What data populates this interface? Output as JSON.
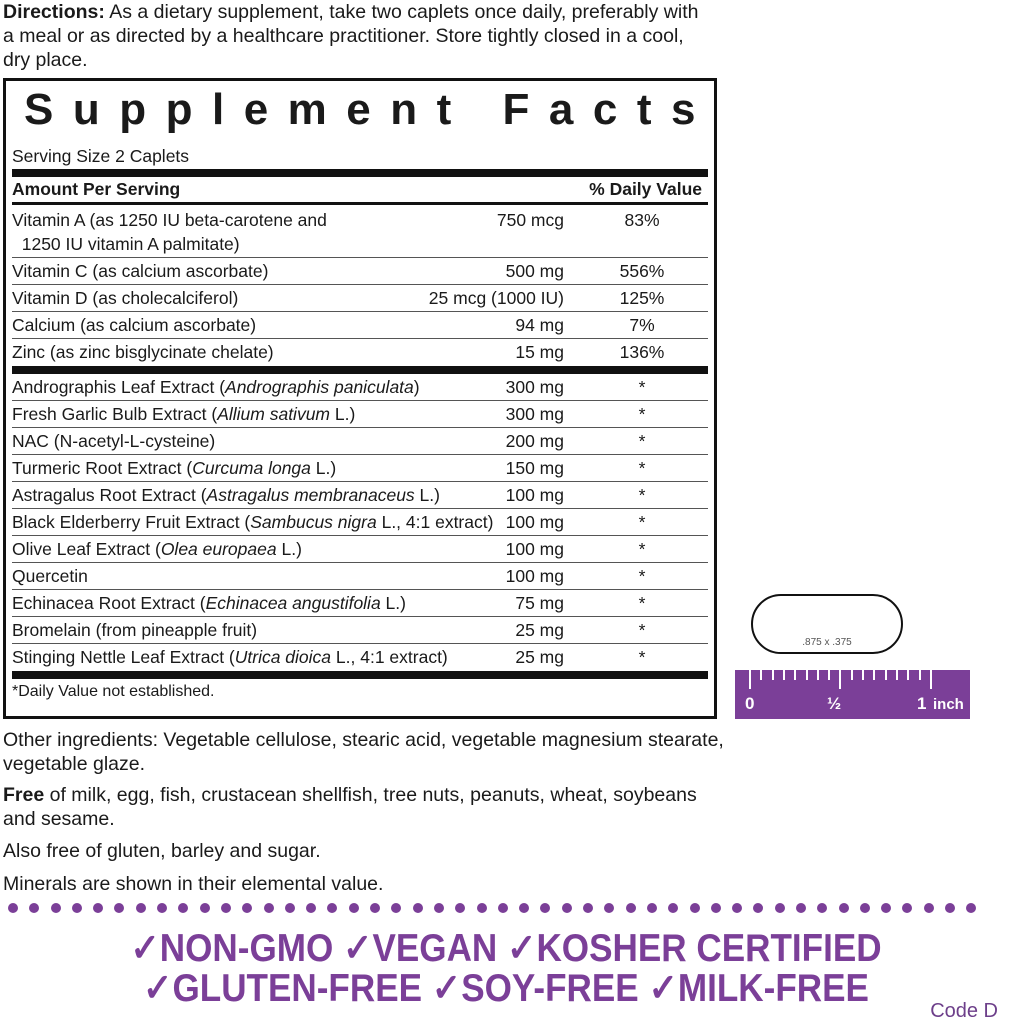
{
  "directions": {
    "label": "Directions:",
    "text": " As a dietary supplement, take two caplets once daily, preferably with a meal or as directed by a healthcare practitioner. Store tightly closed in a cool, dry place."
  },
  "facts": {
    "title": "Supplement Facts",
    "serving_size": "Serving Size 2 Caplets",
    "header_amount": "Amount Per Serving",
    "header_dv": "% Daily Value",
    "vitamins": [
      {
        "name": "Vitamin A (as 1250 IU beta-carotene and",
        "name2": "1250 IU vitamin A palmitate)",
        "amount": "750 mcg",
        "dv": "83%"
      },
      {
        "name": "Vitamin C (as calcium ascorbate)",
        "amount": "500 mg",
        "dv": "556%"
      },
      {
        "name": "Vitamin D (as cholecalciferol)",
        "amount": "25 mcg (1000 IU)",
        "dv": "125%"
      },
      {
        "name": "Calcium (as calcium ascorbate)",
        "amount": "94 mg",
        "dv": "7%"
      },
      {
        "name": "Zinc (as zinc bisglycinate chelate)",
        "amount": "15 mg",
        "dv": "136%"
      }
    ],
    "botanicals": [
      {
        "pre": "Andrographis Leaf Extract (",
        "it": "Andrographis paniculata",
        "post": ")",
        "amount": "300 mg",
        "dv": "*"
      },
      {
        "pre": "Fresh Garlic Bulb Extract (",
        "it": "Allium sativum",
        "post": " L.)",
        "amount": "300 mg",
        "dv": "*"
      },
      {
        "pre": "NAC (N-acetyl-L-cysteine)",
        "it": "",
        "post": "",
        "amount": "200 mg",
        "dv": "*"
      },
      {
        "pre": "Turmeric Root Extract (",
        "it": "Curcuma longa",
        "post": " L.)",
        "amount": "150 mg",
        "dv": "*"
      },
      {
        "pre": "Astragalus Root Extract (",
        "it": "Astragalus membranaceus",
        "post": " L.)",
        "amount": "100 mg",
        "dv": "*"
      },
      {
        "pre": "Black Elderberry Fruit Extract (",
        "it": "Sambucus nigra",
        "post": " L., 4:1 extract)",
        "amount": "100 mg",
        "dv": "*"
      },
      {
        "pre": "Olive Leaf Extract (",
        "it": "Olea europaea",
        "post": " L.)",
        "amount": "100 mg",
        "dv": "*"
      },
      {
        "pre": "Quercetin",
        "it": "",
        "post": "",
        "amount": "100 mg",
        "dv": "*"
      },
      {
        "pre": "Echinacea Root Extract (",
        "it": "Echinacea angustifolia",
        "post": " L.)",
        "amount": "75 mg",
        "dv": "*"
      },
      {
        "pre": "Bromelain (from pineapple fruit)",
        "it": "",
        "post": "",
        "amount": "25 mg",
        "dv": "*"
      },
      {
        "pre": "Stinging Nettle Leaf Extract (",
        "it": "Utrica dioica",
        "post": " L., 4:1 extract)",
        "amount": "25 mg",
        "dv": "*"
      }
    ],
    "footnote": "*Daily Value not established."
  },
  "other_ingredients": "Other ingredients: Vegetable cellulose, stearic acid, vegetable magnesium stearate, vegetable glaze.",
  "free_of": {
    "label": "Free",
    "text": " of milk, egg, fish, crustacean shellfish, tree nuts,  peanuts, wheat, soybeans and sesame."
  },
  "also_free": "Also free of gluten, barley and sugar.",
  "minerals_note": "Minerals are shown in their elemental value.",
  "caplet_size": ".875 x .375",
  "ruler": {
    "zero": "0",
    "half": "½",
    "one": "1",
    "unit": "inch"
  },
  "claims_line1": "✓NON-GMO ✓VEGAN ✓KOSHER CERTIFIED",
  "claims_line2": "✓GLUTEN-FREE  ✓SOY-FREE  ✓MILK-FREE",
  "code": "Code D",
  "colors": {
    "brand_purple": "#7b3f98",
    "text": "#1a1a1a"
  }
}
